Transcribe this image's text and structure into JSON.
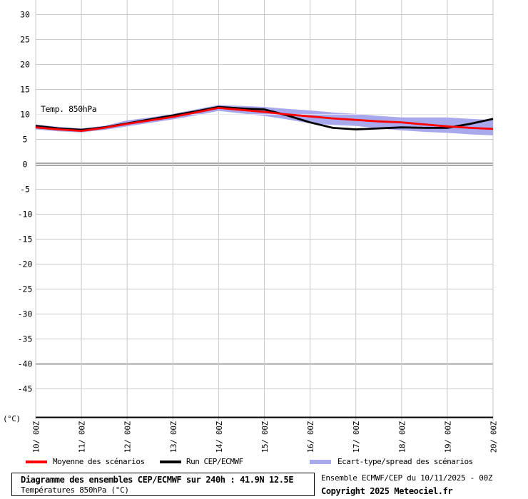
{
  "chart_data": {
    "type": "line",
    "title": "Diagramme des ensembles CEP/ECMWF sur 240h : 41.9N 12.5E",
    "subtitle": "Températures 850hPa (°C)",
    "annotation": "Temp. 850hPa",
    "unit_label": "(°C)",
    "grid": true,
    "legend_position": "bottom",
    "x_axis": {
      "days": [
        10,
        11,
        12,
        13,
        14,
        15,
        16,
        17,
        18,
        19,
        20
      ],
      "labels": [
        "10/ 00Z",
        "11/ 00Z",
        "12/ 00Z",
        "13/ 00Z",
        "14/ 00Z",
        "15/ 00Z",
        "16/ 00Z",
        "17/ 00Z",
        "18/ 00Z",
        "19/ 00Z",
        "20/ 00Z"
      ]
    },
    "y_axis": {
      "ticks": [
        30,
        25,
        20,
        15,
        10,
        5,
        0,
        -5,
        -10,
        -15,
        -20,
        -25,
        -30,
        -35,
        -40,
        -45
      ],
      "emphasized_ticks": [
        0,
        -40
      ],
      "ylim": [
        -50,
        32.5
      ]
    },
    "x": [
      10,
      10.5,
      11,
      11.5,
      12,
      12.5,
      13,
      13.5,
      14,
      14.5,
      15,
      15.5,
      16,
      16.5,
      17,
      17.5,
      18,
      18.5,
      19,
      19.5,
      20
    ],
    "series": [
      {
        "name": "Moyenne des scénarios",
        "type": "line",
        "color": "#ff0000",
        "values": [
          7.4,
          7.0,
          6.7,
          7.3,
          8.1,
          8.8,
          9.5,
          10.4,
          11.3,
          10.9,
          10.5,
          10.0,
          9.6,
          9.2,
          8.9,
          8.6,
          8.4,
          8.0,
          7.6,
          7.3,
          7.1
        ]
      },
      {
        "name": "Run CEP/ECMWF",
        "type": "line",
        "color": "#000000",
        "values": [
          7.7,
          7.2,
          6.9,
          7.4,
          8.2,
          9.0,
          9.8,
          10.6,
          11.5,
          11.2,
          11.0,
          9.8,
          8.4,
          7.3,
          7.0,
          7.2,
          7.4,
          7.3,
          7.3,
          8.1,
          9.1
        ]
      },
      {
        "name": "Ecart-type/spread des scénarios",
        "type": "band",
        "color": "#a8a8ec",
        "upper": [
          8.0,
          7.5,
          7.2,
          7.7,
          8.8,
          9.4,
          10.1,
          11.0,
          11.9,
          11.7,
          11.5,
          11.1,
          10.8,
          10.4,
          10.1,
          9.7,
          9.4,
          9.4,
          9.4,
          9.1,
          8.9
        ],
        "lower": [
          7.0,
          6.6,
          6.4,
          6.9,
          7.6,
          8.3,
          9.0,
          9.8,
          10.7,
          10.2,
          9.7,
          9.0,
          8.2,
          7.9,
          7.7,
          7.2,
          6.8,
          6.5,
          6.3,
          6.0,
          5.8
        ]
      }
    ],
    "colors": {
      "grid": "#c9c9c9",
      "zero_line": "#8a8a8a",
      "minus40_line": "#c4c4c4",
      "axis": "#000000"
    }
  },
  "legend": {
    "items": [
      {
        "label": "Moyenne des scénarios",
        "color": "#ff0000"
      },
      {
        "label": "Run CEP/ECMWF",
        "color": "#000000"
      },
      {
        "label": "Ecart-type/spread des scénarios",
        "color": "#a8a8ec"
      }
    ]
  },
  "footer": {
    "info_box": {
      "title": "Diagramme des ensembles CEP/ECMWF sur 240h : 41.9N 12.5E",
      "subtitle": "Températures 850hPa (°C)"
    },
    "run_info": "Ensemble ECMWF/CEP du 10/11/2025 - 00Z",
    "copyright": "Copyright 2025 Meteociel.fr"
  }
}
